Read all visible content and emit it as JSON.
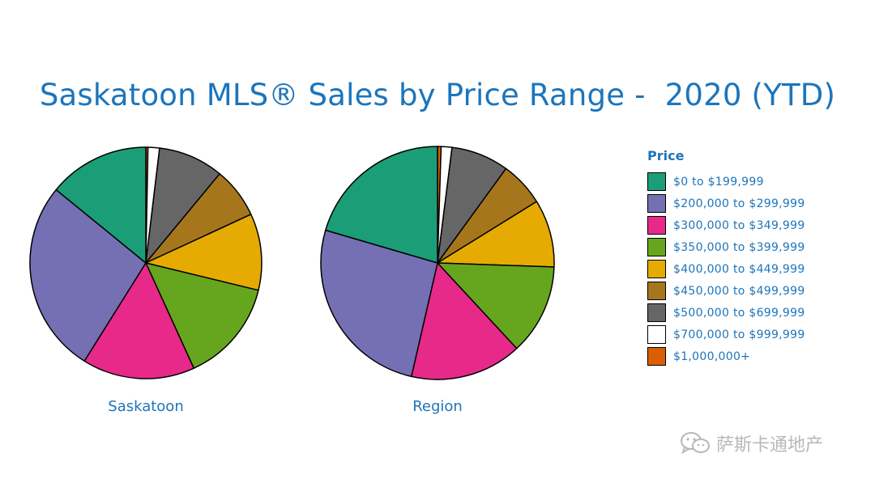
{
  "title": "Saskatoon MLS® Sales by Price Range -  2020 (YTD)",
  "legend": {
    "title": "Price",
    "items": [
      {
        "label": "$0 to $199,999",
        "color": "#1b9e77"
      },
      {
        "label": "$200,000 to $299,999",
        "color": "#7570b3"
      },
      {
        "label": "$300,000 to $349,999",
        "color": "#e7298a"
      },
      {
        "label": "$350,000 to $399,999",
        "color": "#66a61e"
      },
      {
        "label": "$400,000 to $449,999",
        "color": "#e6ab02"
      },
      {
        "label": "$450,000 to $499,999",
        "color": "#a6761d"
      },
      {
        "label": "$500,000 to $699,999",
        "color": "#666666"
      },
      {
        "label": "$700,000 to $999,999",
        "color": "#ffffff"
      },
      {
        "label": "$1,000,000+",
        "color": "#d95f02"
      }
    ]
  },
  "chart_data": [
    {
      "type": "pie",
      "title": "Saskatoon",
      "categories": [
        "$0 to $199,999",
        "$200,000 to $299,999",
        "$300,000 to $349,999",
        "$350,000 to $399,999",
        "$400,000 to $449,999",
        "$450,000 to $499,999",
        "$500,000 to $699,999",
        "$700,000 to $999,999",
        "$1,000,000+"
      ],
      "values": [
        14.1,
        27.0,
        15.7,
        14.4,
        10.7,
        7.1,
        9.1,
        1.6,
        0.3
      ],
      "unit": "%"
    },
    {
      "type": "pie",
      "title": "Region",
      "categories": [
        "$0 to $199,999",
        "$200,000 to $299,999",
        "$300,000 to $349,999",
        "$350,000 to $399,999",
        "$400,000 to $449,999",
        "$450,000 to $499,999",
        "$500,000 to $699,999",
        "$700,000 to $999,999",
        "$1,000,000+"
      ],
      "values": [
        20.5,
        26.0,
        15.5,
        12.6,
        9.4,
        6.2,
        8.0,
        1.5,
        0.5
      ],
      "unit": "%"
    }
  ],
  "watermark": {
    "text": "萨斯卡通地产",
    "icon": "wechat-icon"
  }
}
